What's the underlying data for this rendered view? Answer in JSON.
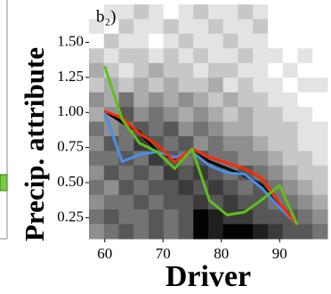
{
  "chart_data": {
    "type": "heatmap",
    "panel_label": "b₂)",
    "xlabel": "Driver",
    "ylabel": "Precip. attribute",
    "xlim": [
      57.3,
      98.2
    ],
    "xticks": [
      60,
      70,
      80,
      90
    ],
    "ylim": [
      0.1,
      1.77
    ],
    "yticks": [
      {
        "value": 0.25,
        "label": "0.25"
      },
      {
        "value": 0.5,
        "label": "0.50"
      },
      {
        "value": 0.75,
        "label": "0.75"
      },
      {
        "value": 1.0,
        "label": "1.00"
      },
      {
        "value": 1.25,
        "label": "1.25"
      },
      {
        "value": 1.5,
        "label": "1.50"
      }
    ],
    "heatmap": {
      "z": [
        [
          0,
          1,
          1,
          2,
          1,
          0,
          1,
          2,
          1,
          1,
          2,
          1,
          0,
          0,
          0,
          0
        ],
        [
          1,
          0,
          2,
          1,
          1,
          2,
          1,
          1,
          2,
          1,
          1,
          2,
          0,
          0,
          0,
          0
        ],
        [
          0,
          2,
          1,
          1,
          0,
          1,
          2,
          1,
          1,
          2,
          1,
          1,
          0,
          0,
          0,
          0
        ],
        [
          2,
          1,
          2,
          2,
          1,
          2,
          1,
          2,
          1,
          1,
          2,
          1,
          1,
          0,
          1,
          0
        ],
        [
          3,
          2,
          1,
          2,
          3,
          2,
          2,
          1,
          2,
          2,
          1,
          1,
          0,
          1,
          0,
          0
        ],
        [
          2,
          3,
          2,
          3,
          2,
          3,
          2,
          2,
          3,
          1,
          2,
          1,
          1,
          0,
          1,
          1
        ],
        [
          4,
          3,
          5,
          3,
          4,
          3,
          4,
          3,
          2,
          3,
          2,
          2,
          1,
          1,
          0,
          0
        ],
        [
          3,
          4,
          6,
          4,
          5,
          4,
          3,
          4,
          3,
          2,
          3,
          2,
          2,
          1,
          1,
          0
        ],
        [
          5,
          4,
          5,
          6,
          5,
          6,
          4,
          5,
          4,
          3,
          3,
          2,
          2,
          2,
          1,
          1
        ],
        [
          4,
          6,
          5,
          7,
          6,
          5,
          6,
          4,
          5,
          4,
          4,
          3,
          2,
          2,
          1,
          1
        ],
        [
          5,
          5,
          6,
          5,
          7,
          6,
          5,
          6,
          5,
          5,
          4,
          4,
          3,
          2,
          2,
          1
        ],
        [
          4,
          6,
          5,
          6,
          5,
          7,
          6,
          7,
          6,
          5,
          6,
          5,
          4,
          3,
          2,
          2
        ],
        [
          5,
          4,
          6,
          5,
          6,
          6,
          7,
          6,
          7,
          6,
          5,
          6,
          5,
          4,
          3,
          2
        ],
        [
          4,
          5,
          5,
          6,
          5,
          6,
          6,
          7,
          6,
          7,
          6,
          6,
          5,
          5,
          4,
          3
        ],
        [
          5,
          6,
          5,
          5,
          6,
          5,
          6,
          9,
          8,
          7,
          7,
          6,
          6,
          6,
          5,
          4
        ],
        [
          4,
          5,
          6,
          5,
          6,
          5,
          6,
          9,
          8,
          9,
          9,
          8,
          7,
          6,
          6,
          5
        ]
      ]
    },
    "series": [
      {
        "color": "#000000",
        "x": [
          60,
          63,
          66,
          69,
          72,
          75,
          78,
          81,
          84,
          87,
          90,
          93
        ],
        "values": [
          1.01,
          0.93,
          0.86,
          0.72,
          0.67,
          0.72,
          0.65,
          0.6,
          0.55,
          0.48,
          0.32,
          0.2
        ]
      },
      {
        "color": "#4a8fe8",
        "x": [
          60,
          63,
          66,
          69,
          72,
          75,
          78,
          81,
          84,
          87,
          90,
          93
        ],
        "values": [
          1.0,
          0.65,
          0.7,
          0.72,
          0.68,
          0.72,
          0.62,
          0.57,
          0.56,
          0.46,
          0.32,
          0.2
        ]
      },
      {
        "color": "#ff2a00",
        "x": [
          60,
          63,
          66,
          69,
          72,
          75,
          78,
          81,
          84,
          87,
          90,
          93
        ],
        "values": [
          1.01,
          0.96,
          0.85,
          0.77,
          0.65,
          0.74,
          0.68,
          0.64,
          0.6,
          0.53,
          0.35,
          0.2
        ]
      },
      {
        "color": "#5fbf1a",
        "x": [
          60,
          63,
          66,
          69,
          72,
          75,
          78,
          81,
          84,
          87,
          90,
          93
        ],
        "values": [
          1.33,
          0.95,
          0.78,
          0.72,
          0.6,
          0.74,
          0.37,
          0.27,
          0.29,
          0.38,
          0.48,
          0.2
        ]
      }
    ]
  }
}
